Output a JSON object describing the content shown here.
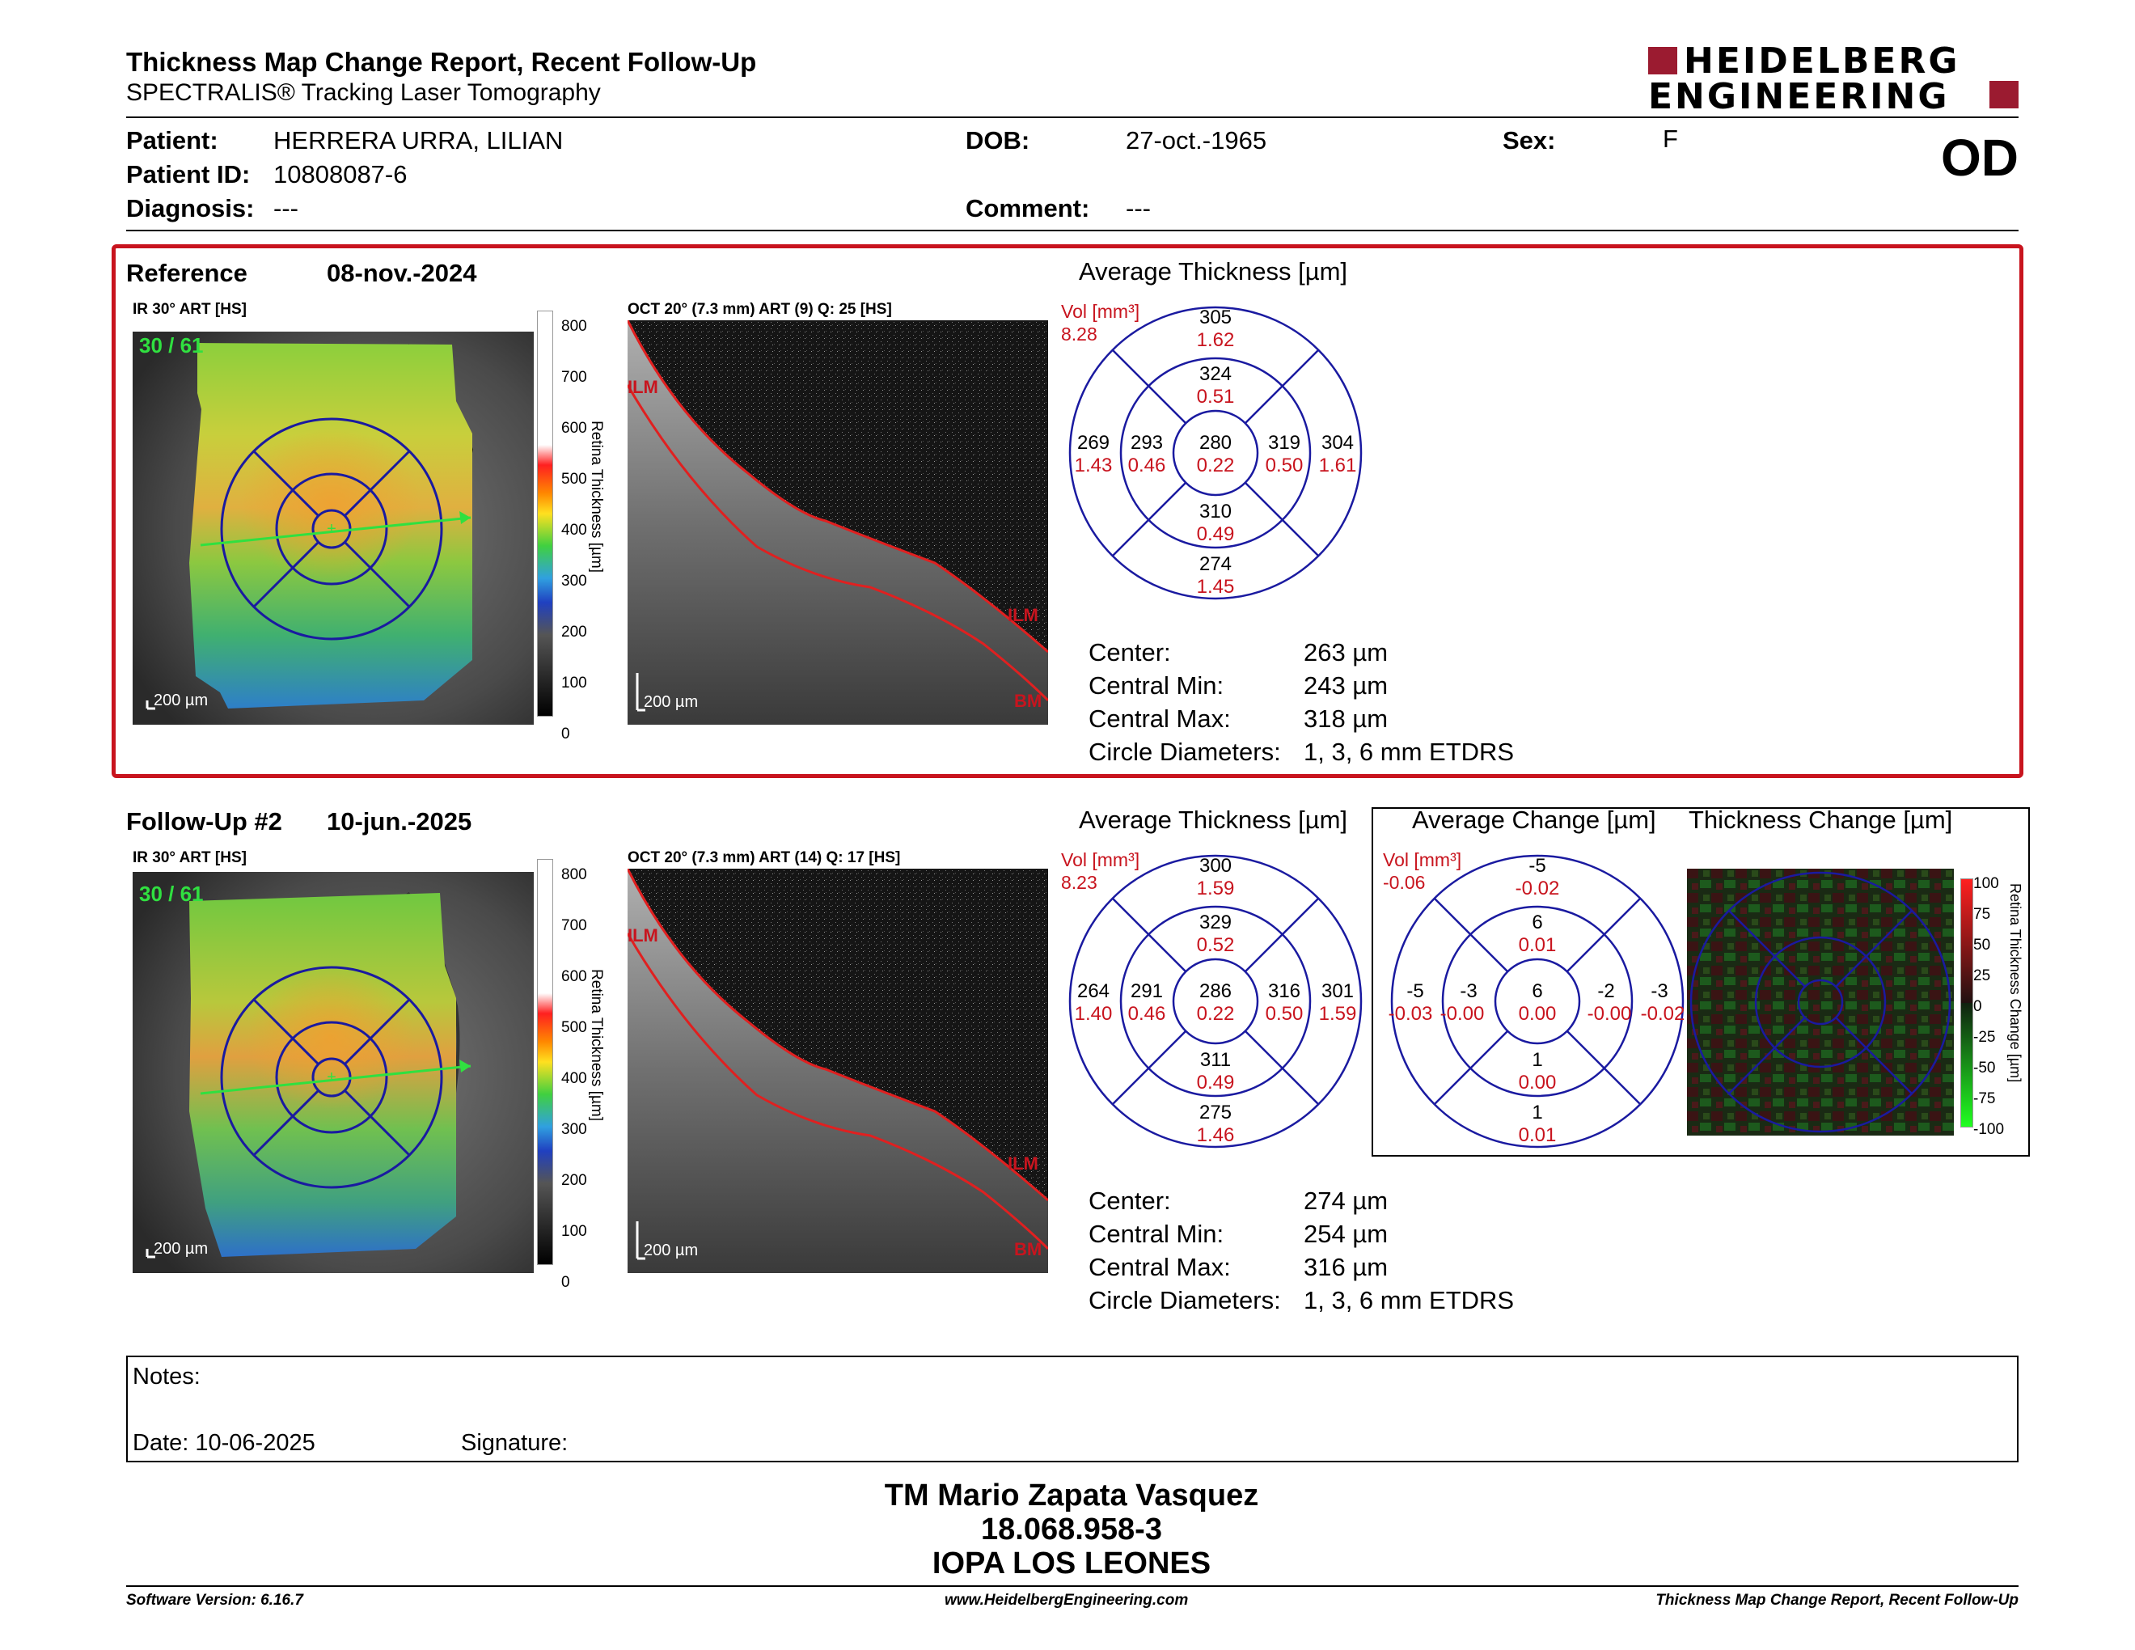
{
  "header": {
    "title": "Thickness Map Change Report, Recent Follow-Up",
    "subtitle": "SPECTRALIS® Tracking Laser Tomography",
    "logo_line1": "HEIDELBERG",
    "logo_line2": "ENGINEERING",
    "eye": "OD"
  },
  "patient": {
    "patient_label": "Patient:",
    "patient_value": "HERRERA URRA, LILIAN",
    "id_label": "Patient ID:",
    "id_value": "10808087-6",
    "diagnosis_label": "Diagnosis:",
    "diagnosis_value": "---",
    "dob_label": "DOB:",
    "dob_value": "27-oct.-1965",
    "comment_label": "Comment:",
    "comment_value": "---",
    "sex_label": "Sex:",
    "sex_value": "F"
  },
  "reference": {
    "label": "Reference",
    "date": "08-nov.-2024",
    "ir_caption": "IR 30° ART [HS]",
    "ir_count": "30 / 61",
    "ir_scale": "200 µm",
    "oct_caption": "OCT 20° (7.3 mm) ART (9) Q: 25 [HS]",
    "oct_scale": "200 µm",
    "etdrs": {
      "title": "Average Thickness [µm]",
      "vol_label": "Vol [mm³]",
      "vol_value": "8.28",
      "center": [
        "280",
        "0.22"
      ],
      "inner_top": [
        "324",
        "0.51"
      ],
      "inner_bottom": [
        "310",
        "0.49"
      ],
      "inner_left": [
        "293",
        "0.46"
      ],
      "inner_right": [
        "319",
        "0.50"
      ],
      "outer_top": [
        "305",
        "1.62"
      ],
      "outer_bottom": [
        "274",
        "1.45"
      ],
      "outer_left": [
        "269",
        "1.43"
      ],
      "outer_right": [
        "304",
        "1.61"
      ]
    },
    "stats": {
      "center_label": "Center:",
      "center_value": "263 µm",
      "min_label": "Central Min:",
      "min_value": "243 µm",
      "max_label": "Central Max:",
      "max_value": "318 µm",
      "diam_label": "Circle Diameters:",
      "diam_value": "1, 3, 6 mm ETDRS"
    }
  },
  "followup": {
    "label": "Follow-Up #2",
    "date": "10-jun.-2025",
    "ir_caption": "IR 30° ART [HS]",
    "ir_count": "30 / 61",
    "ir_scale": "200 µm",
    "oct_caption": "OCT 20° (7.3 mm) ART (14) Q: 17 [HS]",
    "oct_scale": "200 µm",
    "etdrs": {
      "title": "Average Thickness [µm]",
      "vol_label": "Vol [mm³]",
      "vol_value": "8.23",
      "center": [
        "286",
        "0.22"
      ],
      "inner_top": [
        "329",
        "0.52"
      ],
      "inner_bottom": [
        "311",
        "0.49"
      ],
      "inner_left": [
        "291",
        "0.46"
      ],
      "inner_right": [
        "316",
        "0.50"
      ],
      "outer_top": [
        "300",
        "1.59"
      ],
      "outer_bottom": [
        "275",
        "1.46"
      ],
      "outer_left": [
        "264",
        "1.40"
      ],
      "outer_right": [
        "301",
        "1.59"
      ]
    },
    "change": {
      "title": "Average Change [µm]",
      "vol_label": "Vol [mm³]",
      "vol_value": "-0.06",
      "center": [
        "6",
        "0.00"
      ],
      "inner_top": [
        "6",
        "0.01"
      ],
      "inner_bottom": [
        "1",
        "0.00"
      ],
      "inner_left": [
        "-3",
        "-0.00"
      ],
      "inner_right": [
        "-2",
        "-0.00"
      ],
      "outer_top": [
        "-5",
        "-0.02"
      ],
      "outer_bottom": [
        "1",
        "0.01"
      ],
      "outer_left": [
        "-5",
        "-0.03"
      ],
      "outer_right": [
        "-3",
        "-0.02"
      ]
    },
    "change_map": {
      "title": "Thickness Change [µm]",
      "axis_label": "Retina Thickness Change [µm]",
      "ticks": [
        "100",
        "75",
        "50",
        "25",
        "0",
        "-25",
        "-50",
        "-75",
        "-100"
      ]
    },
    "stats": {
      "center_label": "Center:",
      "center_value": "274 µm",
      "min_label": "Central Min:",
      "min_value": "254 µm",
      "max_label": "Central Max:",
      "max_value": "316 µm",
      "diam_label": "Circle Diameters:",
      "diam_value": "1, 3, 6 mm ETDRS"
    }
  },
  "colorbar": {
    "axis_label": "Retina Thickness [µm]",
    "ticks": [
      "800",
      "700",
      "600",
      "500",
      "400",
      "300",
      "200",
      "100",
      "0"
    ]
  },
  "oct_labels": {
    "ilm": "ILM",
    "bm": "BM",
    "left": "ILM"
  },
  "notes": {
    "label": "Notes:",
    "date_label": "Date: 10-06-2025",
    "signature_label": "Signature:"
  },
  "signature": {
    "name": "TM Mario Zapata Vasquez",
    "id": "18.068.958-3",
    "org": "IOPA LOS LEONES"
  },
  "footer": {
    "version": "Software Version: 6.16.7",
    "url": "www.HeidelbergEngineering.com",
    "report": "Thickness Map Change Report, Recent Follow-Up"
  },
  "colors": {
    "accent_red": "#c8141e",
    "grid_blue": "#1a1aa0",
    "logo_red": "#9b1b30"
  }
}
